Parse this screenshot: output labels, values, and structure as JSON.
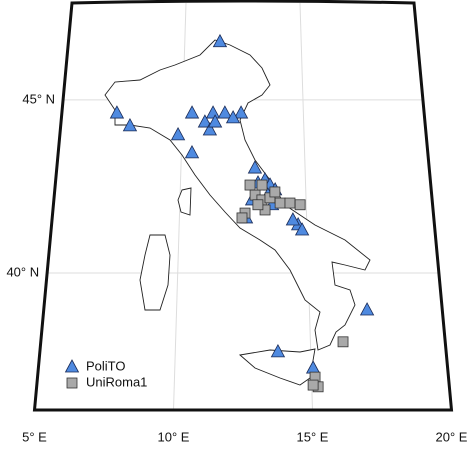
{
  "chart_data": {
    "type": "scatter",
    "xlim": [
      5,
      20
    ],
    "ylim": [
      36.04,
      47.8
    ],
    "xticks": [
      {
        "value": 5,
        "label": "5° E"
      },
      {
        "value": 10,
        "label": "10° E"
      },
      {
        "value": 15,
        "label": "15° E"
      },
      {
        "value": 20,
        "label": "20° E"
      }
    ],
    "yticks": [
      {
        "value": 40,
        "label": "40° N"
      },
      {
        "value": 45,
        "label": "45° N"
      }
    ],
    "grid": true,
    "series": [
      {
        "name": "PoliTO",
        "color": "#4f8ae0",
        "marker": "triangle",
        "x": [
          11.51,
          7.28,
          7.85,
          10.39,
          9.84,
          11.26,
          11.75,
          10.93,
          11.14,
          11.35,
          12.42,
          12.09,
          10.43,
          12.98,
          13.1,
          13.38,
          13.58,
          13.78,
          13.49,
          13.65,
          12.86,
          12.62,
          14.66,
          14.46,
          14.81,
          17.17,
          13.79,
          15.07
        ],
        "y": [
          46.68,
          44.62,
          44.25,
          44.62,
          43.99,
          44.62,
          44.62,
          44.36,
          44.13,
          44.36,
          44.62,
          44.48,
          43.47,
          43.03,
          42.6,
          42.69,
          42.54,
          42.4,
          42.25,
          41.97,
          42.11,
          41.59,
          41.39,
          41.53,
          41.24,
          38.93,
          37.72,
          37.25
        ]
      },
      {
        "name": "UniRoma1",
        "color": "#a9a9a9",
        "marker": "square",
        "x": [
          12.78,
          12.98,
          13.25,
          13.57,
          13.37,
          13.09,
          13.97,
          14.36,
          14.76,
          12.58,
          12.46,
          13.26,
          13.77,
          16.21,
          15.13,
          15.23,
          15.05
        ],
        "y": [
          42.54,
          42.25,
          42.11,
          42.17,
          41.82,
          41.97,
          42.02,
          42.02,
          41.97,
          41.73,
          41.59,
          42.54,
          42.34,
          38.01,
          36.99,
          36.71,
          36.76
        ]
      }
    ]
  }
}
